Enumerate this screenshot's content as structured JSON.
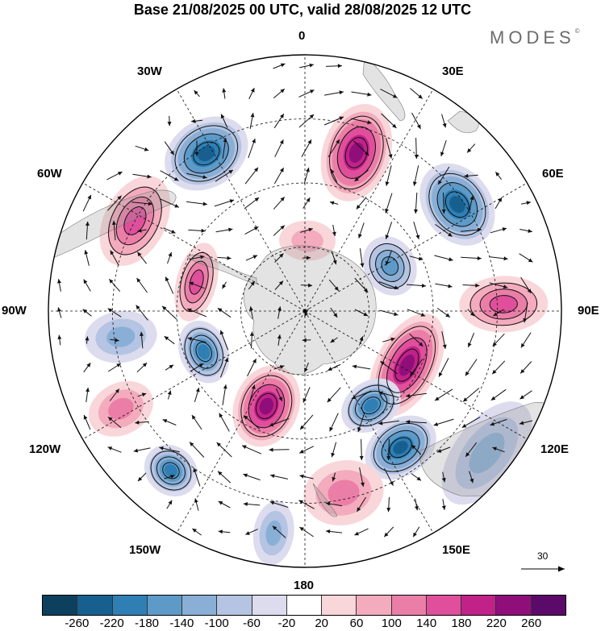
{
  "title": "Base 21/08/2025 00 UTC, valid 28/08/2025 12 UTC",
  "brand": {
    "text": "MODES",
    "mark": "©"
  },
  "longitude_labels": {
    "top": "0",
    "top_left": "30W",
    "top_right": "30E",
    "left_upper": "60W",
    "right_upper": "60E",
    "left": "90W",
    "right": "90E",
    "left_lower": "120W",
    "right_lower": "120E",
    "bottom_left": "150W",
    "bottom_right": "150E",
    "bottom": "180"
  },
  "reference_vector": {
    "label": "30"
  },
  "colorbar": {
    "colors": [
      "#0d3f5e",
      "#175f8e",
      "#2f7fb5",
      "#5d9ac8",
      "#8aafd6",
      "#b4c4e2",
      "#dcdcee",
      "#ffffff",
      "#f9d6da",
      "#f3abbd",
      "#eb7ea7",
      "#df4f9b",
      "#c02288",
      "#900e7a",
      "#5c0a6a"
    ],
    "ticks": [
      "-260",
      "-220",
      "-180",
      "-140",
      "-100",
      "-60",
      "-20",
      "20",
      "60",
      "100",
      "140",
      "180",
      "220",
      "260"
    ]
  },
  "anomaly_blobs": [
    {
      "name": "anomaly-high-45e",
      "sign": "pos",
      "peak": 240,
      "lon": 18,
      "colat": 52,
      "rx": 42,
      "ry": 62
    },
    {
      "name": "anomaly-low-60e",
      "sign": "neg",
      "peak": -240,
      "lon": 55,
      "colat": 58,
      "rx": 55,
      "ry": 42
    },
    {
      "name": "anomaly-low-20w",
      "sign": "neg",
      "peak": -220,
      "lon": -32,
      "colat": 58,
      "rx": 55,
      "ry": 42
    },
    {
      "name": "anomaly-high-50w",
      "sign": "pos",
      "peak": 160,
      "lon": -62,
      "colat": 60,
      "rx": 60,
      "ry": 38
    },
    {
      "name": "anomaly-high-70w",
      "sign": "pos",
      "peak": 140,
      "lon": -75,
      "colat": 35,
      "rx": 50,
      "ry": 25
    },
    {
      "name": "anomaly-low-60e-inner",
      "sign": "neg",
      "peak": -160,
      "lon": 62,
      "colat": 30,
      "rx": 38,
      "ry": 32
    },
    {
      "name": "anomaly-high-90e",
      "sign": "pos",
      "peak": 140,
      "lon": 88,
      "colat": 62,
      "rx": 35,
      "ry": 55
    },
    {
      "name": "anomaly-high-110e",
      "sign": "pos",
      "peak": 220,
      "lon": 118,
      "colat": 36,
      "rx": 70,
      "ry": 38
    },
    {
      "name": "anomaly-low-95w",
      "sign": "neg",
      "peak": -120,
      "lon": -98,
      "colat": 58,
      "rx": 32,
      "ry": 45
    },
    {
      "name": "anomaly-low-110w",
      "sign": "neg",
      "peak": -180,
      "lon": -112,
      "colat": 34,
      "rx": 40,
      "ry": 30
    },
    {
      "name": "anomaly-high-120w",
      "sign": "pos",
      "peak": 100,
      "lon": -118,
      "colat": 65,
      "rx": 32,
      "ry": 42
    },
    {
      "name": "anomaly-low-140w",
      "sign": "neg",
      "peak": -180,
      "lon": -140,
      "colat": 65,
      "rx": 35,
      "ry": 30
    },
    {
      "name": "anomaly-high-155w",
      "sign": "pos",
      "peak": 220,
      "lon": -158,
      "colat": 32,
      "rx": 40,
      "ry": 52
    },
    {
      "name": "anomaly-low-150e",
      "sign": "neg",
      "peak": -180,
      "lon": 145,
      "colat": 36,
      "rx": 40,
      "ry": 30
    },
    {
      "name": "anomaly-low-135e",
      "sign": "neg",
      "peak": -220,
      "lon": 145,
      "colat": 52,
      "rx": 48,
      "ry": 35
    },
    {
      "name": "anomaly-low-125e-ocean",
      "sign": "neg",
      "peak": -120,
      "lon": 128,
      "colat": 72,
      "rx": 75,
      "ry": 40
    },
    {
      "name": "anomaly-low-170w",
      "sign": "neg",
      "peak": -100,
      "lon": -172,
      "colat": 70,
      "rx": 25,
      "ry": 40
    },
    {
      "name": "anomaly-high-165e",
      "sign": "pos",
      "peak": 100,
      "lon": 168,
      "colat": 58,
      "rx": 50,
      "ry": 40
    },
    {
      "name": "anomaly-high-0",
      "sign": "pos",
      "peak": 60,
      "lon": 2,
      "colat": 22,
      "rx": 35,
      "ry": 25
    }
  ]
}
